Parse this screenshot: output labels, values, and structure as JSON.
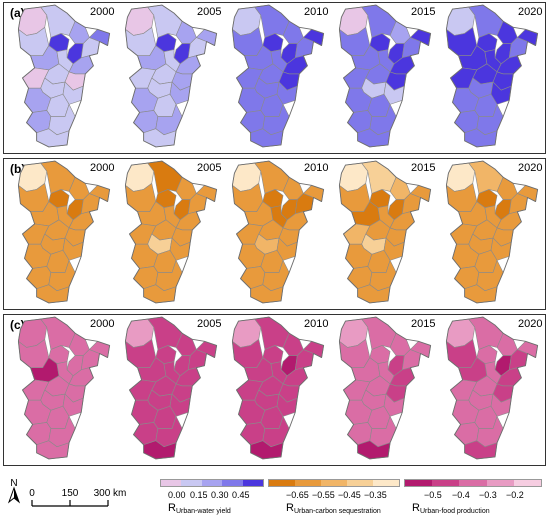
{
  "panels": [
    {
      "label": "(a)",
      "years": [
        "2000",
        "2005",
        "2010",
        "2015",
        "2020"
      ],
      "palette": [
        "#e8c6e6",
        "#c9c8f2",
        "#a7a3f0",
        "#7f78ea",
        "#4b36de"
      ],
      "maps": [
        [
          0,
          4,
          1,
          2,
          4,
          1,
          3,
          1,
          2,
          1,
          2,
          1,
          0,
          0,
          1,
          1,
          2,
          1,
          2,
          1,
          1
        ],
        [
          0,
          4,
          1,
          2,
          4,
          1,
          2,
          1,
          2,
          1,
          2,
          1,
          2,
          1,
          1,
          2,
          2,
          1,
          2,
          2,
          1
        ],
        [
          1,
          4,
          3,
          3,
          4,
          3,
          4,
          3,
          3,
          3,
          4,
          3,
          4,
          3,
          3,
          3,
          3,
          3,
          3,
          3,
          3
        ],
        [
          0,
          4,
          3,
          2,
          4,
          3,
          4,
          3,
          3,
          3,
          4,
          3,
          4,
          3,
          1,
          1,
          3,
          3,
          3,
          3,
          3
        ],
        [
          1,
          4,
          3,
          4,
          4,
          3,
          4,
          4,
          4,
          4,
          4,
          4,
          4,
          4,
          3,
          4,
          3,
          3,
          3,
          3,
          3
        ]
      ]
    },
    {
      "label": "(b)",
      "years": [
        "2000",
        "2005",
        "2010",
        "2015",
        "2020"
      ],
      "palette": [
        "#d97b10",
        "#e89a3c",
        "#f1b567",
        "#f7d097",
        "#fde8c8"
      ],
      "maps": [
        [
          4,
          0,
          1,
          1,
          0,
          1,
          1,
          1,
          1,
          1,
          1,
          1,
          1,
          1,
          1,
          1,
          1,
          1,
          1,
          1,
          1
        ],
        [
          4,
          0,
          0,
          1,
          0,
          1,
          1,
          1,
          1,
          1,
          1,
          1,
          1,
          1,
          3,
          1,
          1,
          1,
          1,
          1,
          1
        ],
        [
          4,
          0,
          1,
          1,
          0,
          0,
          1,
          1,
          1,
          0,
          1,
          1,
          1,
          1,
          2,
          1,
          1,
          1,
          1,
          1,
          1
        ],
        [
          4,
          0,
          3,
          2,
          0,
          1,
          1,
          1,
          0,
          1,
          1,
          1,
          1,
          2,
          3,
          1,
          1,
          1,
          1,
          1,
          1
        ],
        [
          4,
          0,
          2,
          1,
          0,
          1,
          1,
          1,
          1,
          1,
          1,
          1,
          1,
          1,
          1,
          1,
          1,
          1,
          1,
          1,
          1
        ]
      ]
    },
    {
      "label": "(c)",
      "years": [
        "2000",
        "2005",
        "2010",
        "2015",
        "2020"
      ],
      "palette": [
        "#b21a6e",
        "#c94088",
        "#da6da5",
        "#e89bc3",
        "#f6cde1"
      ],
      "maps": [
        [
          2,
          2,
          2,
          2,
          2,
          2,
          2,
          2,
          0,
          2,
          2,
          2,
          2,
          2,
          2,
          2,
          2,
          2,
          2,
          2,
          2
        ],
        [
          3,
          1,
          1,
          1,
          1,
          1,
          1,
          1,
          1,
          1,
          1,
          1,
          1,
          1,
          1,
          1,
          1,
          1,
          1,
          1,
          0
        ],
        [
          3,
          1,
          1,
          1,
          0,
          1,
          1,
          1,
          1,
          1,
          1,
          1,
          1,
          1,
          1,
          1,
          1,
          1,
          1,
          1,
          0
        ],
        [
          3,
          2,
          2,
          2,
          1,
          2,
          2,
          2,
          2,
          2,
          1,
          2,
          1,
          2,
          2,
          2,
          2,
          2,
          2,
          2,
          0
        ],
        [
          3,
          2,
          2,
          2,
          0,
          1,
          2,
          1,
          1,
          2,
          1,
          2,
          1,
          2,
          2,
          2,
          2,
          2,
          2,
          2,
          1
        ]
      ]
    }
  ],
  "legends": [
    {
      "title_main": "R",
      "title_sub": "Urban-water yield",
      "colors": [
        "#e8c6e6",
        "#c9c8f2",
        "#a7a3f0",
        "#7f78ea",
        "#4b36de"
      ],
      "ticks": [
        "0.00",
        "0.15",
        "0.30",
        "0.45"
      ]
    },
    {
      "title_main": "R",
      "title_sub": "Urban-carbon sequestration",
      "colors": [
        "#d97b10",
        "#e89a3c",
        "#f1b567",
        "#f7d097",
        "#fde8c8"
      ],
      "ticks": [
        "−0.65",
        "−0.55",
        "−0.45",
        "−0.35"
      ]
    },
    {
      "title_main": "R",
      "title_sub": "Urban-food production",
      "colors": [
        "#b21a6e",
        "#c94088",
        "#da6da5",
        "#e89bc3",
        "#f6cde1"
      ],
      "ticks": [
        "−0.5",
        "−0.4",
        "−0.3",
        "−0.2"
      ]
    }
  ],
  "scale_bar": {
    "north_label": "N",
    "labels": [
      "0",
      "150",
      "300 km"
    ]
  }
}
